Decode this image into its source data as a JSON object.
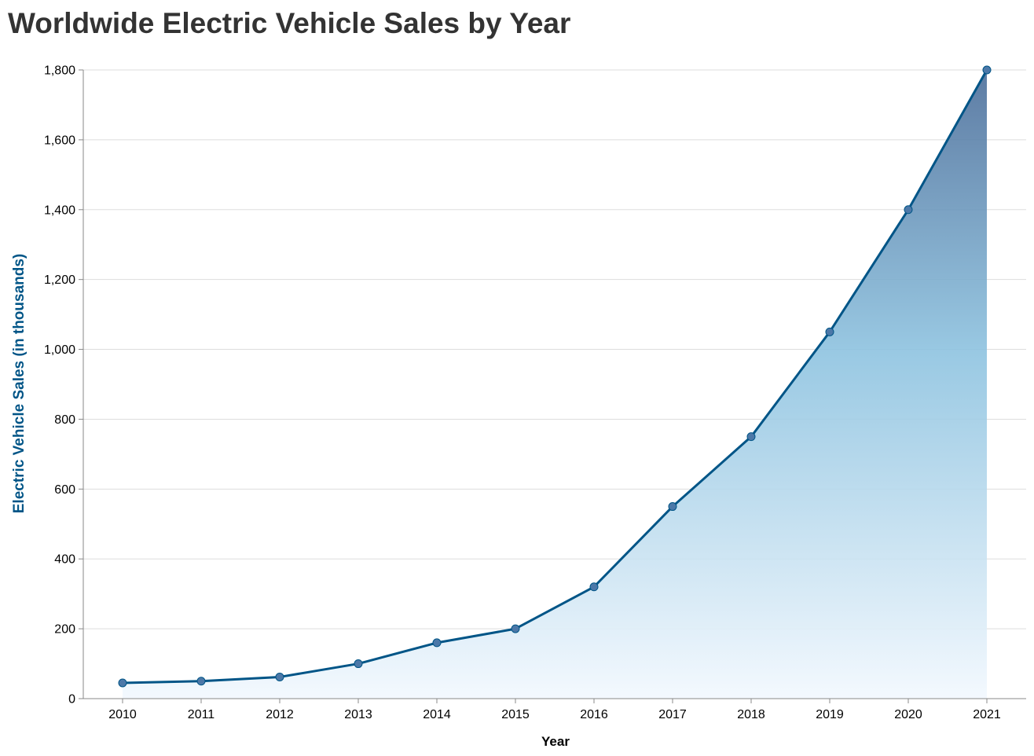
{
  "chart_data": {
    "type": "area",
    "title": "Worldwide Electric Vehicle Sales by Year",
    "xlabel": "Year",
    "ylabel": "Electric Vehicle Sales (in thousands)",
    "x": [
      2010,
      2011,
      2012,
      2013,
      2014,
      2015,
      2016,
      2017,
      2018,
      2019,
      2020,
      2021
    ],
    "x_tick_labels": [
      "2010",
      "2011",
      "2012",
      "2013",
      "2014",
      "2015",
      "2016",
      "2017",
      "2018",
      "2019",
      "2020",
      "2021"
    ],
    "series": [
      {
        "values": [
          45,
          50,
          62,
          100,
          160,
          200,
          320,
          550,
          750,
          1050,
          1400,
          1800
        ]
      }
    ],
    "ylim": [
      0,
      1800
    ],
    "y_ticks": [
      0,
      200,
      400,
      600,
      800,
      1000,
      1200,
      1400,
      1600,
      1800
    ],
    "y_tick_labels": [
      "0",
      "200",
      "400",
      "600",
      "800",
      "1,000",
      "1,200",
      "1,400",
      "1,600",
      "1,800"
    ],
    "grid": true,
    "colors": {
      "line": "#005587",
      "point": "#4c78a8",
      "area_top": "#4c6e9a",
      "area_mid": "#8ec3e0",
      "area_bottom": "#f2f8fe",
      "grid": "#dddddd",
      "axis": "#888888",
      "ylabel": "#005587",
      "title": "#333333"
    }
  }
}
